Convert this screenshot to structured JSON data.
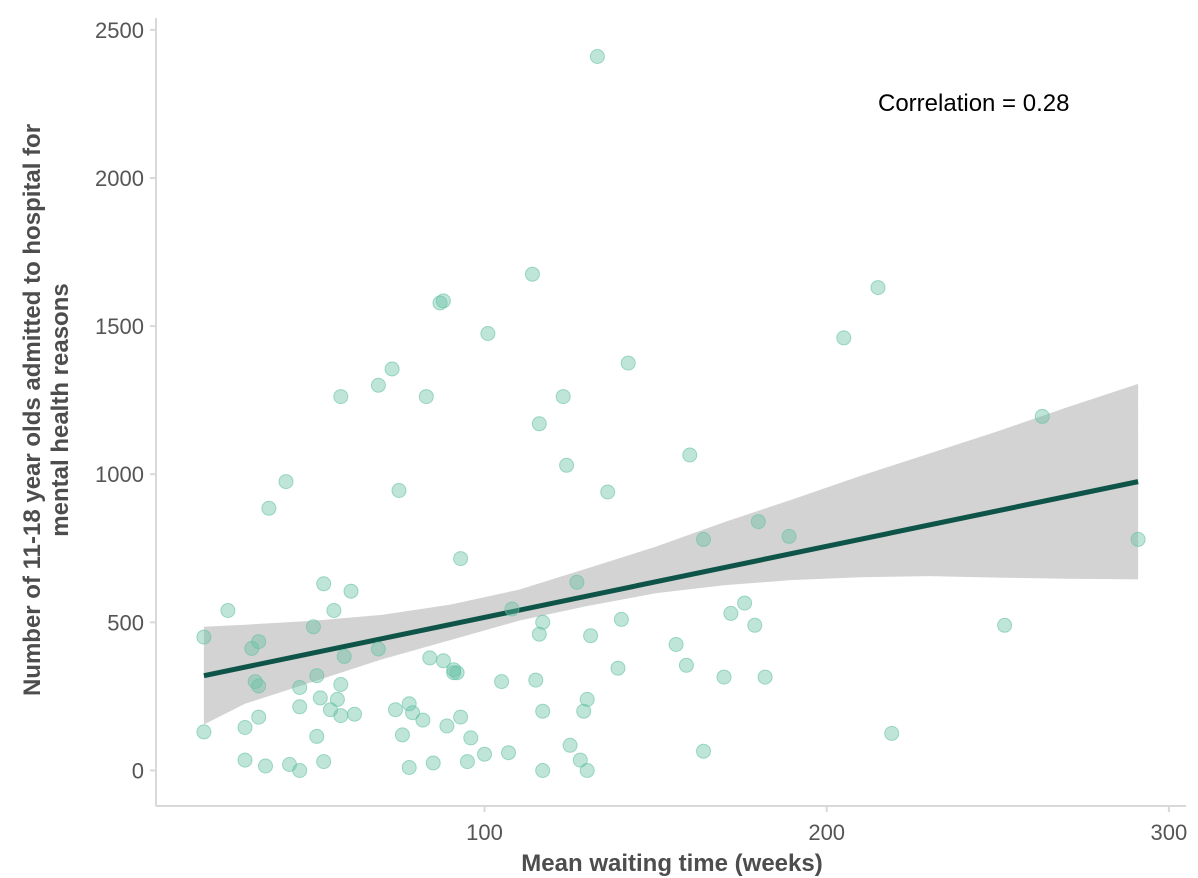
{
  "colors": {
    "point_fill": "#66c2a5",
    "trend_line": "#0f5448",
    "ribbon": "#d3d3d3",
    "axis_line": "#d9d9d9",
    "tick_text": "#555555",
    "title_text": "#4d4d4d"
  },
  "chart_data": {
    "type": "scatter",
    "xlabel": "Mean waiting time (weeks)",
    "ylabel_lines": [
      "Number of 11-18 year olds admitted to hospital for",
      "mental health reasons"
    ],
    "xlim": [
      4,
      305
    ],
    "ylim": [
      -120,
      2540
    ],
    "xticks": [
      100,
      200,
      300
    ],
    "yticks": [
      0,
      500,
      1000,
      1500,
      2000,
      2500
    ],
    "grid": false,
    "legend": "none",
    "annotation": "Correlation =  0.28",
    "trend": {
      "x": [
        18,
        291
      ],
      "y": [
        320,
        975
      ]
    },
    "confidence_band": {
      "x": [
        18,
        30,
        50,
        70,
        90,
        110,
        130,
        150,
        170,
        190,
        210,
        230,
        250,
        270,
        291
      ],
      "upper": [
        485,
        492,
        505,
        525,
        560,
        610,
        682,
        755,
        838,
        915,
        995,
        1070,
        1145,
        1225,
        1305
      ],
      "lower": [
        155,
        225,
        300,
        375,
        440,
        505,
        555,
        598,
        625,
        643,
        652,
        656,
        651,
        647,
        645
      ]
    },
    "points": [
      {
        "x": 18,
        "y": 450
      },
      {
        "x": 18,
        "y": 130
      },
      {
        "x": 25,
        "y": 540
      },
      {
        "x": 30,
        "y": 145
      },
      {
        "x": 30,
        "y": 35
      },
      {
        "x": 32,
        "y": 412
      },
      {
        "x": 33,
        "y": 300
      },
      {
        "x": 34,
        "y": 435
      },
      {
        "x": 34,
        "y": 180
      },
      {
        "x": 34,
        "y": 285
      },
      {
        "x": 36,
        "y": 15
      },
      {
        "x": 37,
        "y": 885
      },
      {
        "x": 42,
        "y": 975
      },
      {
        "x": 43,
        "y": 20
      },
      {
        "x": 46,
        "y": 280
      },
      {
        "x": 46,
        "y": 215
      },
      {
        "x": 46,
        "y": 0
      },
      {
        "x": 50,
        "y": 485
      },
      {
        "x": 51,
        "y": 320
      },
      {
        "x": 51,
        "y": 115
      },
      {
        "x": 52,
        "y": 245
      },
      {
        "x": 53,
        "y": 630
      },
      {
        "x": 53,
        "y": 30
      },
      {
        "x": 55,
        "y": 205
      },
      {
        "x": 56,
        "y": 540
      },
      {
        "x": 57,
        "y": 240
      },
      {
        "x": 58,
        "y": 1262
      },
      {
        "x": 58,
        "y": 290
      },
      {
        "x": 58,
        "y": 185
      },
      {
        "x": 59,
        "y": 385
      },
      {
        "x": 61,
        "y": 605
      },
      {
        "x": 62,
        "y": 190
      },
      {
        "x": 69,
        "y": 1300
      },
      {
        "x": 69,
        "y": 410
      },
      {
        "x": 73,
        "y": 1355
      },
      {
        "x": 74,
        "y": 205
      },
      {
        "x": 75,
        "y": 945
      },
      {
        "x": 76,
        "y": 120
      },
      {
        "x": 78,
        "y": 225
      },
      {
        "x": 78,
        "y": 10
      },
      {
        "x": 79,
        "y": 195
      },
      {
        "x": 82,
        "y": 170
      },
      {
        "x": 83,
        "y": 1262
      },
      {
        "x": 84,
        "y": 380
      },
      {
        "x": 85,
        "y": 25
      },
      {
        "x": 87,
        "y": 1578
      },
      {
        "x": 88,
        "y": 1585
      },
      {
        "x": 88,
        "y": 370
      },
      {
        "x": 89,
        "y": 150
      },
      {
        "x": 91,
        "y": 340
      },
      {
        "x": 91,
        "y": 330
      },
      {
        "x": 92,
        "y": 330
      },
      {
        "x": 93,
        "y": 715
      },
      {
        "x": 93,
        "y": 180
      },
      {
        "x": 95,
        "y": 30
      },
      {
        "x": 96,
        "y": 110
      },
      {
        "x": 100,
        "y": 55
      },
      {
        "x": 101,
        "y": 1475
      },
      {
        "x": 105,
        "y": 300
      },
      {
        "x": 107,
        "y": 60
      },
      {
        "x": 108,
        "y": 545
      },
      {
        "x": 114,
        "y": 1675
      },
      {
        "x": 115,
        "y": 305
      },
      {
        "x": 116,
        "y": 1170
      },
      {
        "x": 116,
        "y": 460
      },
      {
        "x": 117,
        "y": 500
      },
      {
        "x": 117,
        "y": 200
      },
      {
        "x": 117,
        "y": 0
      },
      {
        "x": 123,
        "y": 1262
      },
      {
        "x": 124,
        "y": 1030
      },
      {
        "x": 125,
        "y": 85
      },
      {
        "x": 127,
        "y": 635
      },
      {
        "x": 128,
        "y": 35
      },
      {
        "x": 129,
        "y": 200
      },
      {
        "x": 130,
        "y": 240
      },
      {
        "x": 130,
        "y": 0
      },
      {
        "x": 131,
        "y": 455
      },
      {
        "x": 133,
        "y": 2410
      },
      {
        "x": 136,
        "y": 940
      },
      {
        "x": 139,
        "y": 345
      },
      {
        "x": 140,
        "y": 510
      },
      {
        "x": 142,
        "y": 1375
      },
      {
        "x": 156,
        "y": 425
      },
      {
        "x": 159,
        "y": 355
      },
      {
        "x": 160,
        "y": 1065
      },
      {
        "x": 164,
        "y": 780
      },
      {
        "x": 164,
        "y": 65
      },
      {
        "x": 170,
        "y": 315
      },
      {
        "x": 172,
        "y": 530
      },
      {
        "x": 176,
        "y": 565
      },
      {
        "x": 180,
        "y": 840
      },
      {
        "x": 179,
        "y": 490
      },
      {
        "x": 182,
        "y": 315
      },
      {
        "x": 189,
        "y": 790
      },
      {
        "x": 205,
        "y": 1460
      },
      {
        "x": 215,
        "y": 1630
      },
      {
        "x": 219,
        "y": 125
      },
      {
        "x": 252,
        "y": 490
      },
      {
        "x": 263,
        "y": 1195
      },
      {
        "x": 291,
        "y": 780
      }
    ]
  }
}
